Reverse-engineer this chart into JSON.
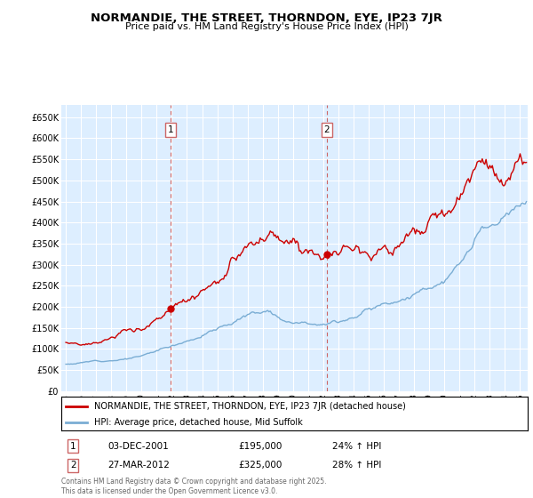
{
  "title": "NORMANDIE, THE STREET, THORNDON, EYE, IP23 7JR",
  "subtitle": "Price paid vs. HM Land Registry's House Price Index (HPI)",
  "ylabel_ticks": [
    "£0",
    "£50K",
    "£100K",
    "£150K",
    "£200K",
    "£250K",
    "£300K",
    "£350K",
    "£400K",
    "£450K",
    "£500K",
    "£550K",
    "£600K",
    "£650K"
  ],
  "ytick_values": [
    0,
    50000,
    100000,
    150000,
    200000,
    250000,
    300000,
    350000,
    400000,
    450000,
    500000,
    550000,
    600000,
    650000
  ],
  "ylim": [
    0,
    680000
  ],
  "xlim_start": 1994.7,
  "xlim_end": 2025.5,
  "sale1_x": 2001.92,
  "sale1_y": 195000,
  "sale1_label": "1",
  "sale1_date": "03-DEC-2001",
  "sale1_price": "£195,000",
  "sale1_hpi": "24% ↑ HPI",
  "sale2_x": 2012.24,
  "sale2_y": 325000,
  "sale2_label": "2",
  "sale2_date": "27-MAR-2012",
  "sale2_price": "£325,000",
  "sale2_hpi": "28% ↑ HPI",
  "line_color_red": "#cc0000",
  "line_color_blue": "#7aadd4",
  "dashed_line_color": "#cc6666",
  "bg_color": "#ddeeff",
  "grid_color": "#ffffff",
  "legend_label_red": "NORMANDIE, THE STREET, THORNDON, EYE, IP23 7JR (detached house)",
  "legend_label_blue": "HPI: Average price, detached house, Mid Suffolk",
  "footer": "Contains HM Land Registry data © Crown copyright and database right 2025.\nThis data is licensed under the Open Government Licence v3.0.",
  "xtick_years": [
    1995,
    1996,
    1997,
    1998,
    1999,
    2000,
    2001,
    2002,
    2003,
    2004,
    2005,
    2006,
    2007,
    2008,
    2009,
    2010,
    2011,
    2012,
    2013,
    2014,
    2015,
    2016,
    2017,
    2018,
    2019,
    2020,
    2021,
    2022,
    2023,
    2024,
    2025
  ]
}
